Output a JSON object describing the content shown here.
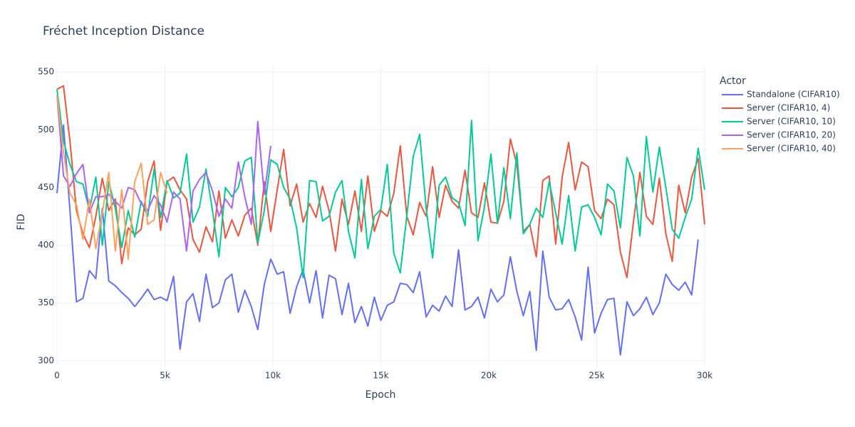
{
  "chart_data": {
    "type": "line",
    "title": "Fréchet Inception Distance",
    "x_label": "Epoch",
    "y_label": "FID",
    "legend_title": "Actor",
    "legend": "right",
    "grid": true,
    "x": [
      0,
      300,
      600,
      900,
      1200,
      1500,
      1800,
      2100,
      2400,
      2700,
      3000,
      3300,
      3600,
      3900,
      4200,
      4500,
      4800,
      5100,
      5400,
      5700,
      6000,
      6300,
      6600,
      6900,
      7200,
      7500,
      7800,
      8100,
      8400,
      8700,
      9000,
      9300,
      9600,
      9900,
      10200,
      10500,
      10800,
      11100,
      11400,
      11700,
      12000,
      12300,
      12600,
      12900,
      13200,
      13500,
      13800,
      14100,
      14400,
      14700,
      15000,
      15300,
      15600,
      15900,
      16200,
      16500,
      16800,
      17100,
      17400,
      17700,
      18000,
      18300,
      18600,
      18900,
      19200,
      19500,
      19800,
      20100,
      20400,
      20700,
      21000,
      21300,
      21600,
      21900,
      22200,
      22500,
      22800,
      23100,
      23400,
      23700,
      24000,
      24300,
      24600,
      24900,
      25200,
      25500,
      25800,
      26100,
      26400,
      26700,
      27000,
      27300,
      27600,
      27900,
      28200,
      28500,
      28800,
      29100,
      29400,
      29700,
      30000
    ],
    "xlim": [
      0,
      30000
    ],
    "xticks": [
      0,
      {
        "value": 5000,
        "label": "5k"
      },
      {
        "value": 10000,
        "label": "10k"
      },
      {
        "value": 15000,
        "label": "15k"
      },
      {
        "value": 20000,
        "label": "20k"
      },
      {
        "value": 25000,
        "label": "25k"
      },
      {
        "value": 30000,
        "label": "30k"
      }
    ],
    "ylim": [
      295,
      555
    ],
    "yticks": [
      300,
      350,
      400,
      450,
      500,
      550
    ],
    "series": [
      {
        "name": "Standalone (CIFAR10)",
        "color": "#636efa",
        "values": [
          445,
          504,
          430,
          351,
          354,
          378,
          371,
          432,
          369,
          365,
          359,
          354,
          347,
          354,
          362,
          353,
          355,
          352,
          373,
          310,
          351,
          358,
          334,
          375,
          346,
          350,
          370,
          375,
          342,
          361,
          347,
          327,
          366,
          388,
          375,
          377,
          341,
          364,
          379,
          350,
          378,
          337,
          374,
          371,
          340,
          367,
          333,
          347,
          330,
          355,
          335,
          348,
          351,
          367,
          366,
          359,
          377,
          338,
          348,
          343,
          356,
          347,
          396,
          344,
          347,
          355,
          337,
          362,
          351,
          357,
          390,
          360,
          339,
          360,
          309,
          395,
          355,
          344,
          345,
          353,
          338,
          318,
          381,
          324,
          341,
          353,
          354,
          305,
          351,
          339,
          345,
          355,
          340,
          350,
          375,
          366,
          361,
          368,
          357,
          405,
          null
        ]
      },
      {
        "name": "Server (CIFAR10, 4)",
        "color": "#EF553B",
        "values": [
          535,
          538,
          490,
          430,
          410,
          398,
          425,
          458,
          430,
          440,
          384,
          415,
          409,
          414,
          455,
          473,
          413,
          455,
          459,
          448,
          440,
          405,
          394,
          416,
          403,
          447,
          406,
          422,
          408,
          426,
          432,
          400,
          455,
          412,
          448,
          483,
          434,
          453,
          420,
          436,
          424,
          451,
          430,
          395,
          440,
          418,
          447,
          412,
          460,
          412,
          430,
          425,
          445,
          486,
          425,
          409,
          437,
          425,
          468,
          424,
          452,
          438,
          432,
          465,
          428,
          424,
          454,
          420,
          419,
          438,
          492,
          470,
          412,
          418,
          390,
          456,
          460,
          401,
          459,
          489,
          448,
          472,
          468,
          430,
          423,
          440,
          435,
          394,
          372,
          420,
          463,
          425,
          418,
          458,
          410,
          386,
          452,
          428,
          459,
          475,
          418
        ]
      },
      {
        "name": "Server (CIFAR10, 10)",
        "color": "#00cc96",
        "values": [
          535,
          490,
          470,
          455,
          453,
          430,
          459,
          400,
          455,
          432,
          398,
          430,
          407,
          438,
          425,
          466,
          424,
          456,
          441,
          445,
          479,
          420,
          433,
          466,
          430,
          390,
          450,
          442,
          450,
          473,
          476,
          402,
          430,
          474,
          470,
          450,
          440,
          415,
          372,
          456,
          455,
          421,
          425,
          446,
          456,
          412,
          389,
          457,
          397,
          425,
          431,
          470,
          393,
          376,
          425,
          477,
          496,
          432,
          389,
          452,
          459,
          441,
          437,
          417,
          508,
          404,
          433,
          479,
          419,
          467,
          423,
          480,
          410,
          418,
          432,
          424,
          455,
          428,
          401,
          443,
          395,
          433,
          435,
          424,
          409,
          453,
          447,
          415,
          476,
          460,
          408,
          494,
          446,
          485,
          450,
          414,
          406,
          424,
          440,
          484,
          448
        ]
      },
      {
        "name": "Server (CIFAR10, 20)",
        "color": "#ab63fa",
        "values": [
          530,
          460,
          451,
          462,
          470,
          428,
          442,
          442,
          444,
          438,
          432,
          450,
          448,
          436,
          430,
          443,
          435,
          420,
          446,
          440,
          395,
          447,
          457,
          463,
          447,
          425,
          440,
          432,
          472,
          442,
          418,
          507,
          444,
          486,
          null,
          null,
          null,
          null,
          null,
          null,
          null,
          null,
          null,
          null,
          null,
          null,
          null,
          null,
          null,
          null,
          null,
          null,
          null,
          null,
          null,
          null,
          null,
          null,
          null,
          null,
          null,
          null,
          null,
          null,
          null,
          null,
          null,
          null,
          null,
          null,
          null,
          null,
          null,
          null,
          null,
          null,
          null,
          null,
          null,
          null,
          null,
          null,
          null,
          null,
          null,
          null,
          null,
          null,
          null,
          null,
          null,
          null,
          null,
          null,
          null,
          null,
          null,
          null,
          null,
          null,
          null
        ]
      },
      {
        "name": "Server (CIFAR10, 40)",
        "color": "#FFA15A",
        "values": [
          530,
          480,
          445,
          435,
          405,
          440,
          397,
          428,
          463,
          395,
          448,
          388,
          455,
          471,
          418,
          422,
          463,
          445,
          null,
          null,
          null,
          null,
          null,
          null,
          null,
          null,
          null,
          null,
          null,
          null,
          null,
          null,
          null,
          null,
          null,
          null,
          null,
          null,
          null,
          null,
          null,
          null,
          null,
          null,
          null,
          null,
          null,
          null,
          null,
          null,
          null,
          null,
          null,
          null,
          null,
          null,
          null,
          null,
          null,
          null,
          null,
          null,
          null,
          null,
          null,
          null,
          null,
          null,
          null,
          null,
          null,
          null,
          null,
          null,
          null,
          null,
          null,
          null,
          null,
          null,
          null,
          null,
          null,
          null,
          null,
          null,
          null,
          null,
          null,
          null,
          null,
          null,
          null,
          null,
          null,
          null,
          null,
          null,
          null,
          null,
          null
        ]
      }
    ]
  }
}
